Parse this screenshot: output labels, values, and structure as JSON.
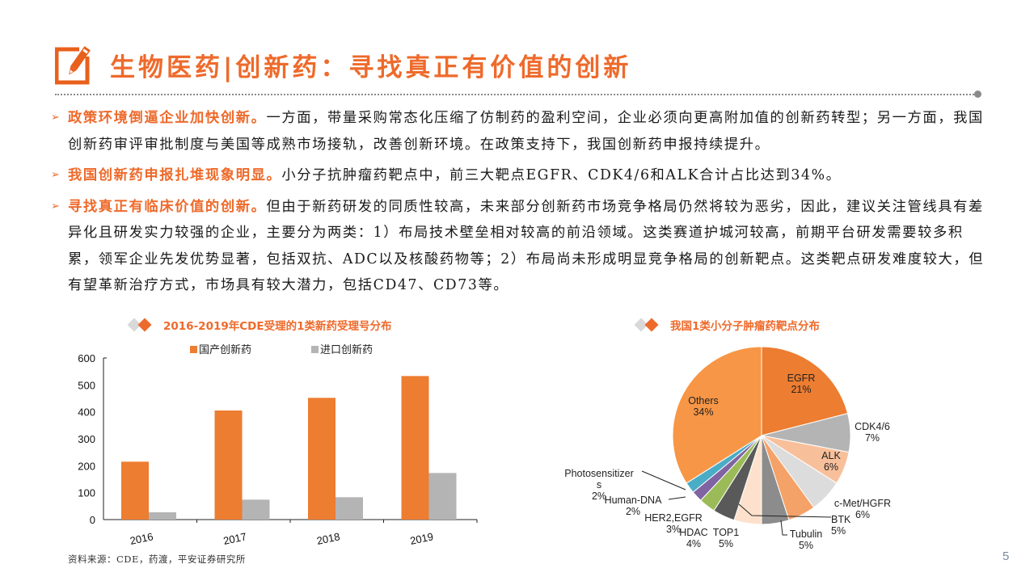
{
  "header": {
    "title": "生物医药|创新药：寻找真正有价值的创新",
    "icon": "edit-pencil-icon",
    "accent_color": "#ee6a2b"
  },
  "bullets": [
    {
      "lead": "政策环境倒逼企业加快创新。",
      "text": "一方面，带量采购常态化压缩了仿制药的盈利空间，企业必须向更高附加值的创新药转型；另一方面，我国创新药审评审批制度与美国等成熟市场接轨，改善创新环境。在政策支持下，我国创新药申报持续提升。"
    },
    {
      "lead": "我国创新药申报扎堆现象明显。",
      "text": "小分子抗肿瘤药靶点中，前三大靶点EGFR、CDK4/6和ALK合计占比达到34%。"
    },
    {
      "lead": "寻找真正有临床价值的创新。",
      "text": "但由于新药研发的同质性较高，未来部分创新药市场竞争格局仍然将较为恶劣，因此，建议关注管线具有差异化且研发实力较强的企业，主要分为两类：1）布局技术壁垒相对较高的前沿领域。这类赛道护城河较高，前期平台研发需要较多积累，领军企业先发优势显著，包括双抗、ADC以及核酸药物等；2）布局尚未形成明显竞争格局的创新靶点。这类靶点研发难度较大，但有望革新治疗方式，市场具有较大潜力，包括CD47、CD73等。"
    }
  ],
  "chart_data": [
    {
      "type": "bar",
      "title": "2016-2019年CDE受理的1类新药受理号分布",
      "categories": [
        "2016",
        "2017",
        "2018",
        "2019"
      ],
      "series": [
        {
          "name": "国产创新药",
          "color": "#ed7d31",
          "values": [
            215,
            405,
            452,
            533
          ]
        },
        {
          "name": "进口创新药",
          "color": "#b4b4b4",
          "values": [
            27,
            74,
            83,
            173
          ]
        }
      ],
      "xlabel": "",
      "ylabel": "",
      "ylim": [
        0,
        600
      ],
      "yticks": [
        "0",
        "100",
        "200",
        "300",
        "400",
        "500",
        "600"
      ],
      "grid": false,
      "legend_position": "top"
    },
    {
      "type": "pie",
      "title": "我国1类小分子肿瘤药靶点分布",
      "slices": [
        {
          "label": "EGFR",
          "value": 21,
          "pct": "21%",
          "color": "#ed7d31"
        },
        {
          "label": "CDK4/6",
          "value": 7,
          "pct": "7%",
          "color": "#b4b4b4"
        },
        {
          "label": "ALK",
          "value": 6,
          "pct": "6%",
          "color": "#f8c09a"
        },
        {
          "label": "c-Met/HGFR",
          "value": 6,
          "pct": "6%",
          "color": "#dcdcdc"
        },
        {
          "label": "BTK",
          "value": 5,
          "pct": "5%",
          "color": "#f4a268"
        },
        {
          "label": "Tubulin",
          "value": 5,
          "pct": "5%",
          "color": "#8c8c8c"
        },
        {
          "label": "TOP1",
          "value": 5,
          "pct": "5%",
          "color": "#fde1cc"
        },
        {
          "label": "HDAC",
          "value": 4,
          "pct": "4%",
          "color": "#595959"
        },
        {
          "label": "HER2,EGFR",
          "value": 3,
          "pct": "3%",
          "color": "#9bbb59"
        },
        {
          "label": "Human-DNA",
          "value": 2,
          "pct": "2%",
          "color": "#8064a2"
        },
        {
          "label": "Photosensitizers",
          "value": 2,
          "pct": "2%",
          "color": "#4bacc6"
        },
        {
          "label": "Others",
          "value": 34,
          "pct": "34%",
          "color": "#f79646"
        }
      ]
    }
  ],
  "footer": {
    "source": "资料来源：CDE，药渡，平安证券研究所",
    "page_number": "5"
  }
}
